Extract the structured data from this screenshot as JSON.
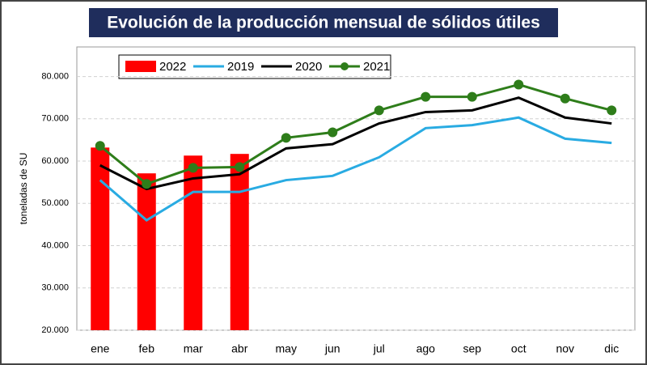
{
  "chart_data": {
    "type": "combo",
    "title": "Evolución de la producción mensual de sólidos útiles",
    "y_label": "toneladas de SU",
    "categories": [
      "ene",
      "feb",
      "mar",
      "abr",
      "may",
      "jun",
      "jul",
      "ago",
      "sep",
      "oct",
      "nov",
      "dic"
    ],
    "ylim": [
      20000,
      87000
    ],
    "yticks": [
      {
        "value": 20000,
        "label": "20.000"
      },
      {
        "value": 30000,
        "label": "30.000"
      },
      {
        "value": 40000,
        "label": "40.000"
      },
      {
        "value": 50000,
        "label": "50.000"
      },
      {
        "value": 60000,
        "label": "60.000"
      },
      {
        "value": 70000,
        "label": "70.000"
      },
      {
        "value": 80000,
        "label": "80.000"
      }
    ],
    "grid": true,
    "legend": "top-left",
    "series": [
      {
        "name": "2022",
        "type": "bar",
        "color": "#ff0000",
        "values": [
          63200,
          57100,
          61300,
          61700,
          null,
          null,
          null,
          null,
          null,
          null,
          null,
          null
        ]
      },
      {
        "name": "2019",
        "type": "line",
        "color": "#29abe2",
        "values": [
          55500,
          46000,
          52700,
          52700,
          55500,
          56500,
          60900,
          67800,
          68500,
          70300,
          65300,
          64300
        ]
      },
      {
        "name": "2020",
        "type": "line",
        "color": "#000000",
        "values": [
          59000,
          53400,
          55900,
          56900,
          63000,
          64000,
          68900,
          71600,
          72000,
          75000,
          70300,
          68900
        ]
      },
      {
        "name": "2021",
        "type": "line",
        "color": "#2e7d1a",
        "marker": true,
        "values": [
          63600,
          54600,
          58400,
          58600,
          65500,
          66800,
          72000,
          75200,
          75200,
          78100,
          74800,
          72000
        ]
      }
    ]
  }
}
